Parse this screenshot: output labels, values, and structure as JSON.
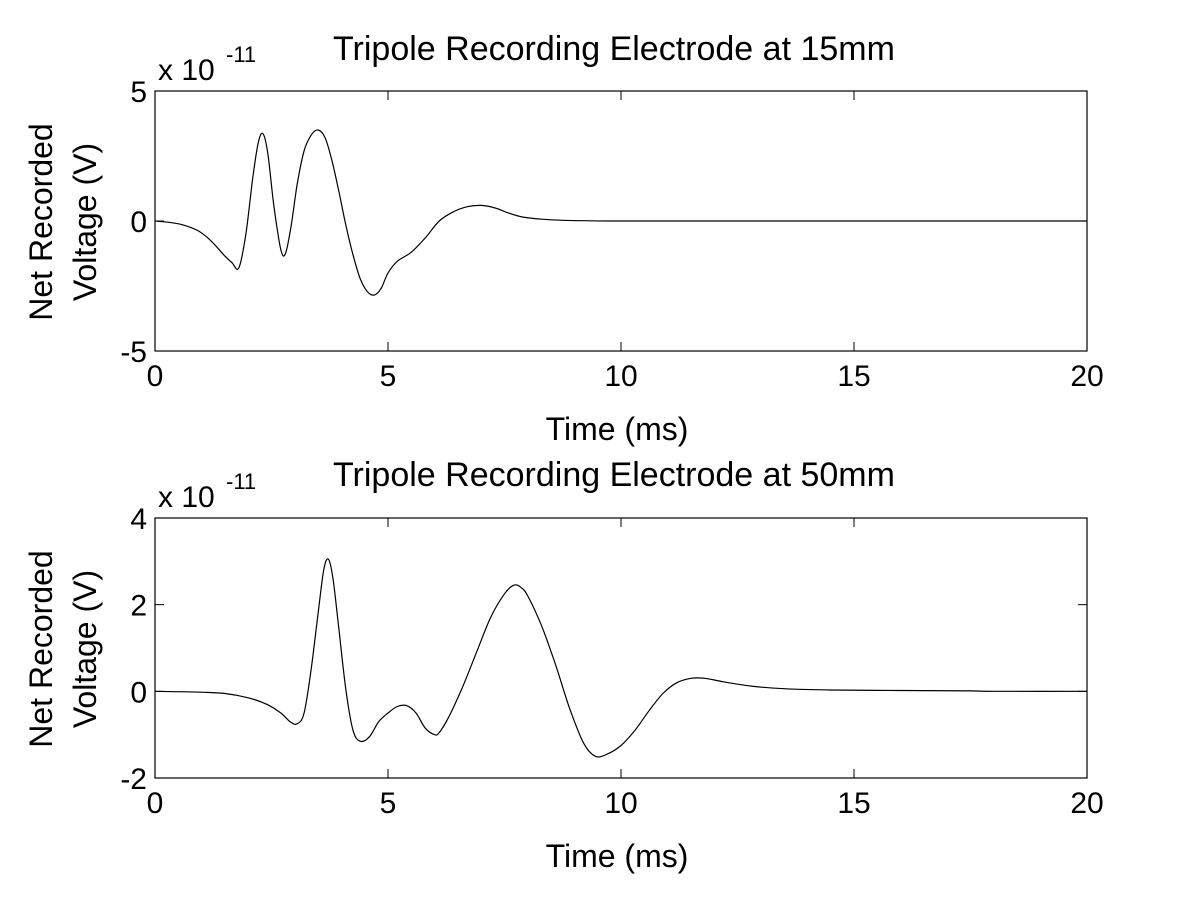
{
  "chart_data": [
    {
      "type": "line",
      "title": "Tripole Recording Electrode at 15mm",
      "xlabel": "Time (ms)",
      "ylabel_lines": [
        "Net Recorded",
        "Voltage (V)"
      ],
      "exponent_prefix": "x 10",
      "exponent_power": "-11",
      "xlim": [
        0,
        20
      ],
      "ylim": [
        -5,
        5
      ],
      "xticks": [
        0,
        5,
        10,
        15,
        20
      ],
      "yticks": [
        -5,
        0,
        5
      ],
      "xtick_labels": [
        "0",
        "5",
        "10",
        "15",
        "20"
      ],
      "ytick_labels": [
        "-5",
        "0",
        "5"
      ],
      "grid": false,
      "series": [
        {
          "name": "15mm",
          "x": [
            0,
            0.3,
            0.6,
            0.9,
            1.1,
            1.3,
            1.5,
            1.65,
            1.8,
            1.95,
            2.1,
            2.22,
            2.32,
            2.42,
            2.55,
            2.7,
            2.8,
            2.92,
            3.05,
            3.2,
            3.35,
            3.5,
            3.65,
            3.8,
            3.95,
            4.1,
            4.25,
            4.4,
            4.55,
            4.7,
            4.85,
            5.0,
            5.2,
            5.5,
            5.8,
            6.1,
            6.4,
            6.7,
            7.0,
            7.3,
            7.6,
            7.9,
            8.3,
            8.7,
            9.2,
            9.8,
            10.5,
            11.5,
            13,
            15,
            17,
            20
          ],
          "y": [
            0,
            -0.05,
            -0.15,
            -0.35,
            -0.6,
            -0.95,
            -1.35,
            -1.6,
            -1.8,
            -0.5,
            1.7,
            3.05,
            3.35,
            2.6,
            0.6,
            -1.1,
            -1.25,
            -0.2,
            1.4,
            2.7,
            3.3,
            3.5,
            3.2,
            2.3,
            1.1,
            -0.2,
            -1.3,
            -2.2,
            -2.7,
            -2.85,
            -2.6,
            -2.0,
            -1.55,
            -1.2,
            -0.65,
            0.0,
            0.35,
            0.55,
            0.6,
            0.5,
            0.3,
            0.15,
            0.07,
            0.03,
            0.01,
            0.0,
            0.0,
            0.0,
            0.0,
            0.0,
            0.0,
            0.0
          ]
        }
      ]
    },
    {
      "type": "line",
      "title": "Tripole Recording Electrode at 50mm",
      "xlabel": "Time (ms)",
      "ylabel_lines": [
        "Net Recorded",
        "Voltage (V)"
      ],
      "exponent_prefix": "x 10",
      "exponent_power": "-11",
      "xlim": [
        0,
        20
      ],
      "ylim": [
        -2,
        4
      ],
      "xticks": [
        0,
        5,
        10,
        15,
        20
      ],
      "yticks": [
        -2,
        0,
        2,
        4
      ],
      "xtick_labels": [
        "0",
        "5",
        "10",
        "15",
        "20"
      ],
      "ytick_labels": [
        "-2",
        "0",
        "2",
        "4"
      ],
      "grid": false,
      "series": [
        {
          "name": "50mm",
          "x": [
            0,
            1.0,
            1.5,
            2.0,
            2.4,
            2.7,
            2.9,
            3.05,
            3.2,
            3.35,
            3.5,
            3.62,
            3.72,
            3.82,
            3.95,
            4.1,
            4.25,
            4.4,
            4.6,
            4.8,
            5.0,
            5.2,
            5.4,
            5.6,
            5.8,
            6.0,
            6.1,
            6.3,
            6.6,
            6.9,
            7.2,
            7.5,
            7.7,
            7.85,
            8.0,
            8.3,
            8.6,
            8.9,
            9.2,
            9.45,
            9.7,
            10.0,
            10.3,
            10.6,
            10.9,
            11.2,
            11.5,
            11.8,
            12.2,
            12.8,
            13.5,
            14.5,
            16,
            17.5,
            18,
            20
          ],
          "y": [
            0,
            -0.02,
            -0.05,
            -0.15,
            -0.3,
            -0.5,
            -0.7,
            -0.75,
            -0.5,
            0.5,
            1.8,
            2.8,
            3.05,
            2.6,
            1.4,
            0.0,
            -0.9,
            -1.15,
            -1.05,
            -0.7,
            -0.5,
            -0.35,
            -0.33,
            -0.5,
            -0.85,
            -1.0,
            -0.95,
            -0.6,
            0.1,
            0.9,
            1.7,
            2.25,
            2.45,
            2.4,
            2.2,
            1.5,
            0.6,
            -0.4,
            -1.2,
            -1.5,
            -1.45,
            -1.25,
            -0.9,
            -0.45,
            -0.05,
            0.2,
            0.3,
            0.3,
            0.22,
            0.12,
            0.06,
            0.03,
            0.02,
            0.01,
            0.0,
            0.0
          ]
        }
      ]
    }
  ]
}
